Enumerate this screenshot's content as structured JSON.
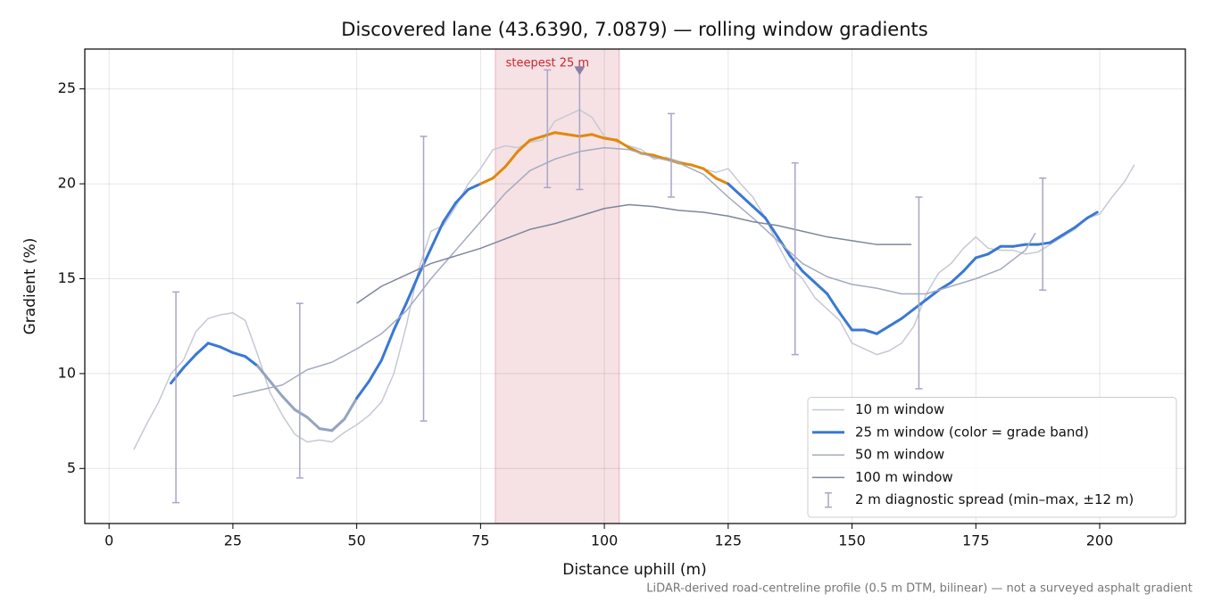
{
  "chart_data": {
    "type": "line",
    "title": "Discovered lane (43.6390, 7.0879) — rolling window gradients",
    "x_label": "Distance uphill (m)",
    "y_label": "Gradient (%)",
    "footnote": "LiDAR-derived road-centreline profile (0.5 m DTM, bilinear) — not a surveyed asphalt gradient",
    "xlim": [
      -4.9,
      217.3
    ],
    "ylim": [
      2.1,
      27.1
    ],
    "xticks": [
      0,
      25,
      50,
      75,
      100,
      125,
      150,
      175,
      200
    ],
    "yticks": [
      5,
      10,
      15,
      20,
      25
    ],
    "grid": true,
    "legend_loc": "lower right",
    "highlight_span": {
      "x": [
        78,
        103
      ],
      "color": "#e8b4bc",
      "label": "steepest 25 m",
      "label_color": "#c62832",
      "marker": {
        "x": 95,
        "y": 26.0,
        "color": "#8a80a6"
      }
    },
    "series": [
      {
        "name": "10 m window",
        "color": "#c5c9d3",
        "width": 1.5,
        "x": [
          5,
          7.5,
          10,
          12.5,
          15,
          17.5,
          20,
          22.5,
          25,
          27.5,
          30,
          32.5,
          35,
          37.5,
          40,
          42.5,
          45,
          47.5,
          50,
          52.5,
          55,
          57.5,
          60,
          62.5,
          65,
          67.5,
          70,
          72.5,
          75,
          77.5,
          80,
          82.5,
          85,
          87.5,
          90,
          92.5,
          95,
          97.5,
          100,
          102.5,
          105,
          107.5,
          110,
          112.5,
          115,
          117.5,
          120,
          122.5,
          125,
          127.5,
          130,
          132.5,
          135,
          137.5,
          140,
          142.5,
          145,
          147.5,
          150,
          152.5,
          155,
          157.5,
          160,
          162.5,
          165,
          167.5,
          170,
          172.5,
          175,
          177.5,
          180,
          182.5,
          185,
          187.5,
          190,
          192.5,
          195,
          197.5,
          200,
          202.5,
          205,
          207
        ],
        "values": [
          6.0,
          7.3,
          8.5,
          10.0,
          10.7,
          12.2,
          12.9,
          13.1,
          13.2,
          12.8,
          11.0,
          9.0,
          7.8,
          6.8,
          6.4,
          6.5,
          6.4,
          6.9,
          7.3,
          7.8,
          8.5,
          10.0,
          12.5,
          15.5,
          17.5,
          17.8,
          18.8,
          20.0,
          20.8,
          21.8,
          22.0,
          21.9,
          22.2,
          22.3,
          23.3,
          23.6,
          23.9,
          23.5,
          22.5,
          22.2,
          22.0,
          21.8,
          21.3,
          21.4,
          21.2,
          21.0,
          20.8,
          20.6,
          20.8,
          20.0,
          19.3,
          18.2,
          16.8,
          15.6,
          15.0,
          14.0,
          13.4,
          12.8,
          11.6,
          11.3,
          11.0,
          11.2,
          11.6,
          12.5,
          14.2,
          15.3,
          15.8,
          16.6,
          17.2,
          16.6,
          16.5,
          16.5,
          16.3,
          16.4,
          16.8,
          17.2,
          17.6,
          18.2,
          18.4,
          19.3,
          20.1,
          21.0
        ]
      },
      {
        "name": "25 m window (color = grade band)",
        "color": "#3a78d4",
        "width": 3,
        "band_colors": [
          {
            "from": 29,
            "to": 50,
            "color": "#94a4be"
          },
          {
            "from": 76,
            "to": 125,
            "color": "#e0890a"
          }
        ],
        "x": [
          12.5,
          15,
          17.5,
          20,
          22.5,
          25,
          27.5,
          30,
          32.5,
          35,
          37.5,
          40,
          42.5,
          45,
          47.5,
          50,
          52.5,
          55,
          57.5,
          60,
          62.5,
          65,
          67.5,
          70,
          72.5,
          75,
          77.5,
          80,
          82.5,
          85,
          87.5,
          90,
          92.5,
          95,
          97.5,
          100,
          102.5,
          105,
          107.5,
          110,
          112.5,
          115,
          117.5,
          120,
          122.5,
          125,
          127.5,
          130,
          132.5,
          135,
          137.5,
          140,
          142.5,
          145,
          147.5,
          150,
          152.5,
          155,
          157.5,
          160,
          162.5,
          165,
          167.5,
          170,
          172.5,
          175,
          177.5,
          180,
          182.5,
          185,
          187.5,
          190,
          192.5,
          195,
          197.5,
          199.5
        ],
        "values": [
          9.5,
          10.3,
          11.0,
          11.6,
          11.4,
          11.1,
          10.9,
          10.4,
          9.6,
          8.8,
          8.1,
          7.7,
          7.1,
          7.0,
          7.6,
          8.7,
          9.6,
          10.7,
          12.3,
          13.7,
          15.2,
          16.6,
          18.0,
          19.0,
          19.7,
          20.0,
          20.3,
          20.9,
          21.7,
          22.3,
          22.5,
          22.7,
          22.6,
          22.5,
          22.6,
          22.4,
          22.3,
          21.9,
          21.6,
          21.5,
          21.3,
          21.1,
          21.0,
          20.8,
          20.3,
          20.0,
          19.4,
          18.8,
          18.2,
          17.2,
          16.2,
          15.4,
          14.8,
          14.2,
          13.2,
          12.3,
          12.3,
          12.1,
          12.5,
          12.9,
          13.4,
          13.9,
          14.4,
          14.8,
          15.4,
          16.1,
          16.3,
          16.7,
          16.7,
          16.8,
          16.8,
          16.9,
          17.3,
          17.7,
          18.2,
          18.5
        ]
      },
      {
        "name": "50 m window",
        "color": "#a4abc0",
        "width": 1.5,
        "x": [
          25,
          30,
          35,
          40,
          45,
          50,
          55,
          60,
          65,
          70,
          75,
          80,
          85,
          90,
          95,
          100,
          105,
          110,
          115,
          120,
          125,
          130,
          135,
          140,
          145,
          150,
          155,
          160,
          165,
          170,
          175,
          180,
          185,
          187
        ],
        "values": [
          8.8,
          9.1,
          9.4,
          10.2,
          10.6,
          11.3,
          12.1,
          13.3,
          15.0,
          16.5,
          18.0,
          19.5,
          20.7,
          21.3,
          21.7,
          21.9,
          21.8,
          21.4,
          21.1,
          20.5,
          19.3,
          18.2,
          17.0,
          15.8,
          15.1,
          14.7,
          14.5,
          14.2,
          14.2,
          14.6,
          15.0,
          15.5,
          16.5,
          17.4
        ]
      },
      {
        "name": "100 m window",
        "color": "#7d8799",
        "width": 1.5,
        "x": [
          50,
          55,
          60,
          65,
          70,
          75,
          80,
          85,
          90,
          95,
          100,
          105,
          110,
          115,
          120,
          125,
          130,
          135,
          140,
          145,
          150,
          155,
          160,
          162
        ],
        "values": [
          13.7,
          14.6,
          15.2,
          15.8,
          16.2,
          16.6,
          17.1,
          17.6,
          17.9,
          18.3,
          18.7,
          18.9,
          18.8,
          18.6,
          18.5,
          18.3,
          18.0,
          17.8,
          17.5,
          17.2,
          17.0,
          16.8,
          16.8,
          16.8
        ]
      }
    ],
    "error_bars": {
      "name": "2 m diagnostic spread (min–max, ±12 m)",
      "color": "#a8a6c8",
      "x": [
        13.5,
        38.5,
        63.5,
        88.5,
        95,
        113.5,
        138.5,
        163.5,
        188.5
      ],
      "low": [
        3.2,
        4.5,
        7.5,
        19.8,
        19.7,
        19.3,
        11.0,
        9.2,
        14.4
      ],
      "high": [
        14.3,
        13.7,
        22.5,
        26.0,
        26.0,
        23.7,
        21.1,
        19.3,
        20.3
      ]
    }
  }
}
